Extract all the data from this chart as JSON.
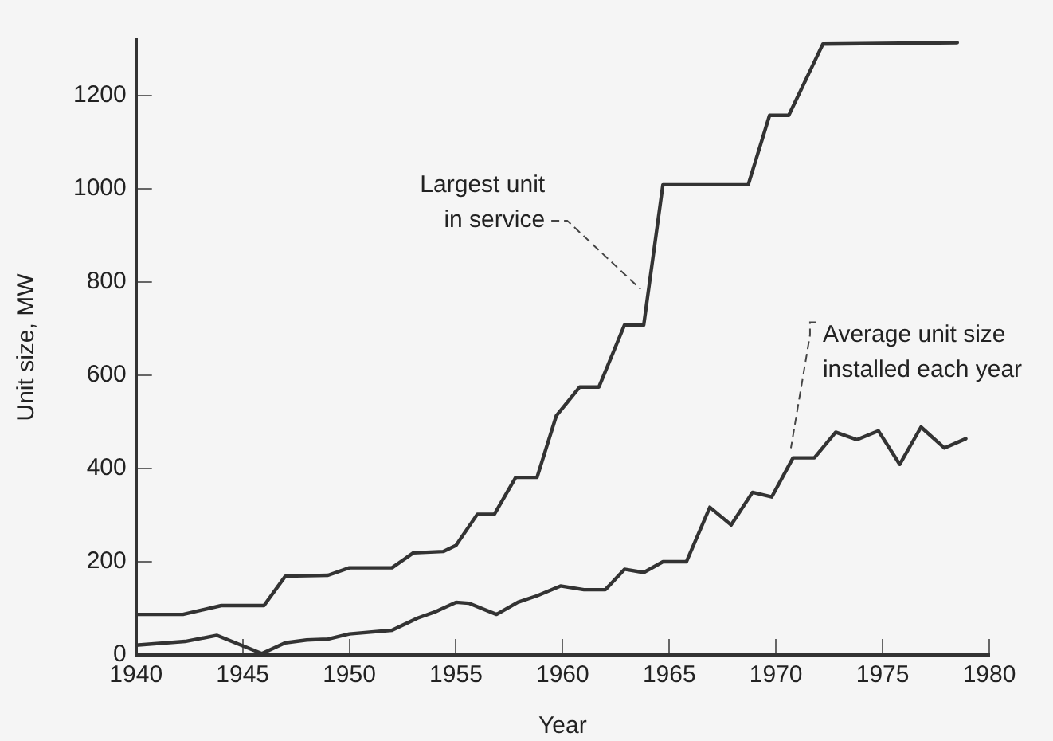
{
  "chart_data": {
    "type": "line",
    "xlabel": "Year",
    "ylabel": "Unit size, MW",
    "xlim": [
      1940,
      1980
    ],
    "xticks": [
      1940,
      1945,
      1950,
      1955,
      1960,
      1965,
      1970,
      1975,
      1980
    ],
    "ylim": [
      0,
      1320
    ],
    "yticks": [
      0,
      200,
      400,
      600,
      800,
      1000,
      1200
    ],
    "grid": false,
    "legend": false,
    "marker": "none",
    "line_style": "solid",
    "series": [
      {
        "color": "#333333",
        "x": [
          1940,
          1942.2,
          1944,
          1946,
          1947,
          1949,
          1950,
          1952,
          1953,
          1954.4,
          1955,
          1956,
          1956.8,
          1957.8,
          1958.8,
          1959.7,
          1960.8,
          1961.7,
          1962.9,
          1963.8,
          1964.7,
          1968.7,
          1969.7,
          1970.6,
          1972.2,
          1978.5
        ],
        "values": [
          87,
          87,
          106,
          106,
          169,
          171,
          187,
          187,
          219,
          222,
          235,
          302,
          302,
          381,
          381,
          513,
          575,
          575,
          708,
          708,
          1009,
          1009,
          1158,
          1158,
          1311,
          1314
        ]
      },
      {
        "color": "#333333",
        "x": [
          1940,
          1942.3,
          1943.8,
          1945.9,
          1947,
          1948,
          1949,
          1950,
          1952,
          1953.2,
          1954,
          1955,
          1955.6,
          1956.9,
          1957.9,
          1958.8,
          1959.9,
          1961,
          1962,
          1962.9,
          1963.8,
          1964.7,
          1965.8,
          1966.9,
          1967.9,
          1968.9,
          1969.8,
          1970.8,
          1971.8,
          1972.8,
          1973.8,
          1974.8,
          1975.8,
          1976.8,
          1977.9,
          1978.9
        ],
        "values": [
          21,
          29,
          42,
          3,
          26,
          32,
          34,
          45,
          53,
          79,
          92,
          113,
          111,
          87,
          113,
          127,
          148,
          140,
          140,
          184,
          177,
          200,
          200,
          317,
          279,
          349,
          339,
          423,
          423,
          478,
          462,
          481,
          409,
          489,
          444,
          464
        ]
      }
    ],
    "annotations": [
      {
        "text": "Largest unit\nin service",
        "x": 1963.8,
        "y": 785
      },
      {
        "text": "Average unit size\ninstalled each year",
        "x": 1970.7,
        "y": 430
      }
    ]
  }
}
